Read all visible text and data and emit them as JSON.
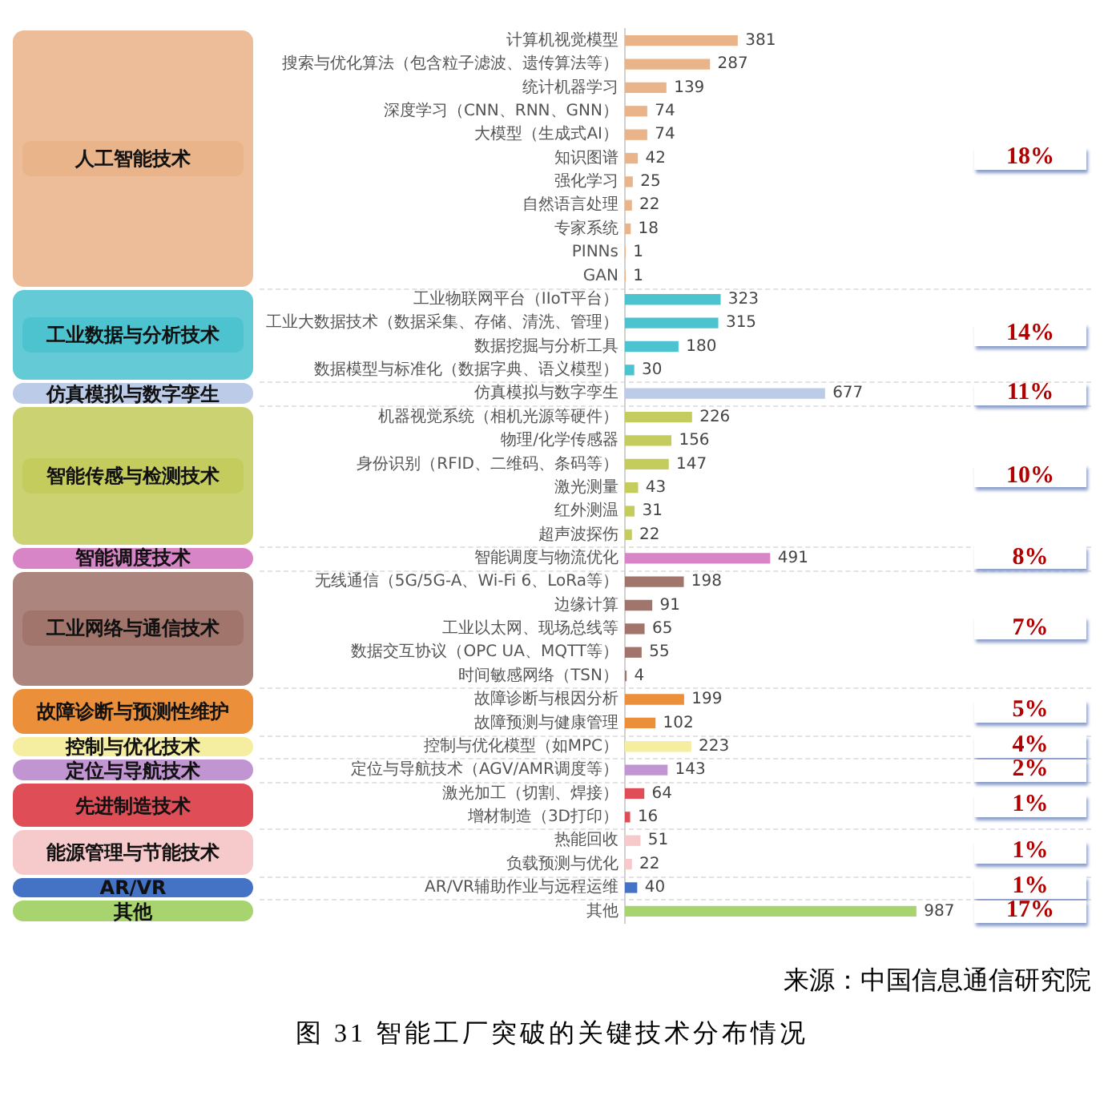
{
  "chart_data": {
    "type": "bar",
    "orientation": "horizontal",
    "title": "图 31 智能工厂突破的关键技术分布情况",
    "categories": [
      "计算机视觉模型",
      "搜索与优化算法（包含粒子滤波、遗传算法等）",
      "统计机器学习",
      "深度学习（CNN、RNN、GNN）",
      "大模型（生成式AI）",
      "知识图谱",
      "强化学习",
      "自然语言处理",
      "专家系统",
      "PINNs",
      "GAN",
      "工业物联网平台（IIoT平台）",
      "工业大数据技术（数据采集、存储、清洗、管理）",
      "数据挖掘与分析工具",
      "数据模型与标准化（数据字典、语义模型）",
      "仿真模拟与数字孪生",
      "机器视觉系统（相机光源等硬件）",
      "物理/化学传感器",
      "身份识别（RFID、二维码、条码等）",
      "激光测量",
      "红外测温",
      "超声波探伤",
      "智能调度与物流优化",
      "无线通信（5G/5G-A、Wi-Fi 6、LoRa等）",
      "边缘计算",
      "工业以太网、现场总线等",
      "数据交互协议（OPC UA、MQTT等）",
      "时间敏感网络（TSN）",
      "故障诊断与根因分析",
      "故障预测与健康管理",
      "控制与优化模型（如MPC）",
      "定位与导航技术（AGV/AMR调度等）",
      "激光加工（切割、焊接）",
      "增材制造（3D打印）",
      "热能回收",
      "负载预测与优化",
      "AR/VR辅助作业与远程运维",
      "其他"
    ],
    "series": [
      {
        "name": "人工智能技术",
        "color": "#e9b48a",
        "values": [
          381,
          287,
          139,
          74,
          74,
          42,
          25,
          22,
          18,
          1,
          1,
          null,
          null,
          null,
          null,
          null,
          null,
          null,
          null,
          null,
          null,
          null,
          null,
          null,
          null,
          null,
          null,
          null,
          null,
          null,
          null,
          null,
          null,
          null,
          null,
          null,
          null,
          null
        ]
      },
      {
        "name": "工业数据与分析技术",
        "color": "#4ec3d0",
        "values": [
          null,
          null,
          null,
          null,
          null,
          null,
          null,
          null,
          null,
          null,
          null,
          323,
          315,
          180,
          30,
          null,
          null,
          null,
          null,
          null,
          null,
          null,
          null,
          null,
          null,
          null,
          null,
          null,
          null,
          null,
          null,
          null,
          null,
          null,
          null,
          null,
          null,
          null
        ]
      },
      {
        "name": "仿真模拟与数字孪生",
        "color": "#bccbe8",
        "values": [
          null,
          null,
          null,
          null,
          null,
          null,
          null,
          null,
          null,
          null,
          null,
          null,
          null,
          null,
          null,
          677,
          null,
          null,
          null,
          null,
          null,
          null,
          null,
          null,
          null,
          null,
          null,
          null,
          null,
          null,
          null,
          null,
          null,
          null,
          null,
          null,
          null,
          null
        ]
      },
      {
        "name": "智能传感与检测技术",
        "color": "#c4cc5e",
        "values": [
          null,
          null,
          null,
          null,
          null,
          null,
          null,
          null,
          null,
          null,
          null,
          null,
          null,
          null,
          null,
          null,
          226,
          156,
          147,
          43,
          31,
          22,
          null,
          null,
          null,
          null,
          null,
          null,
          null,
          null,
          null,
          null,
          null,
          null,
          null,
          null,
          null,
          null
        ]
      },
      {
        "name": "智能调度技术",
        "color": "#d885c8",
        "values": [
          null,
          null,
          null,
          null,
          null,
          null,
          null,
          null,
          null,
          null,
          null,
          null,
          null,
          null,
          null,
          null,
          null,
          null,
          null,
          null,
          null,
          null,
          491,
          null,
          null,
          null,
          null,
          null,
          null,
          null,
          null,
          null,
          null,
          null,
          null,
          null,
          null,
          null
        ]
      },
      {
        "name": "工业网络与通信技术",
        "color": "#a1756c",
        "values": [
          null,
          null,
          null,
          null,
          null,
          null,
          null,
          null,
          null,
          null,
          null,
          null,
          null,
          null,
          null,
          null,
          null,
          null,
          null,
          null,
          null,
          null,
          null,
          198,
          91,
          65,
          55,
          4,
          null,
          null,
          null,
          null,
          null,
          null,
          null,
          null,
          null,
          null
        ]
      },
      {
        "name": "故障诊断与预测性维护",
        "color": "#ec8f3a",
        "values": [
          null,
          null,
          null,
          null,
          null,
          null,
          null,
          null,
          null,
          null,
          null,
          null,
          null,
          null,
          null,
          null,
          null,
          null,
          null,
          null,
          null,
          null,
          null,
          null,
          null,
          null,
          null,
          null,
          199,
          102,
          null,
          null,
          null,
          null,
          null,
          null,
          null,
          null
        ]
      },
      {
        "name": "控制与优化技术",
        "color": "#f5eea0",
        "values": [
          null,
          null,
          null,
          null,
          null,
          null,
          null,
          null,
          null,
          null,
          null,
          null,
          null,
          null,
          null,
          null,
          null,
          null,
          null,
          null,
          null,
          null,
          null,
          null,
          null,
          null,
          null,
          null,
          null,
          null,
          223,
          null,
          null,
          null,
          null,
          null,
          null,
          null
        ]
      },
      {
        "name": "定位与导航技术",
        "color": "#c194d2",
        "values": [
          null,
          null,
          null,
          null,
          null,
          null,
          null,
          null,
          null,
          null,
          null,
          null,
          null,
          null,
          null,
          null,
          null,
          null,
          null,
          null,
          null,
          null,
          null,
          null,
          null,
          null,
          null,
          null,
          null,
          null,
          null,
          143,
          null,
          null,
          null,
          null,
          null,
          null
        ]
      },
      {
        "name": "先进制造技术",
        "color": "#df4e56",
        "values": [
          null,
          null,
          null,
          null,
          null,
          null,
          null,
          null,
          null,
          null,
          null,
          null,
          null,
          null,
          null,
          null,
          null,
          null,
          null,
          null,
          null,
          null,
          null,
          null,
          null,
          null,
          null,
          null,
          null,
          null,
          null,
          null,
          64,
          16,
          null,
          null,
          null,
          null
        ]
      },
      {
        "name": "能源管理与节能技术",
        "color": "#f6c9cb",
        "values": [
          null,
          null,
          null,
          null,
          null,
          null,
          null,
          null,
          null,
          null,
          null,
          null,
          null,
          null,
          null,
          null,
          null,
          null,
          null,
          null,
          null,
          null,
          null,
          null,
          null,
          null,
          null,
          null,
          null,
          null,
          null,
          null,
          null,
          null,
          51,
          22,
          null,
          null
        ]
      },
      {
        "name": "AR/VR",
        "color": "#4472c4",
        "values": [
          null,
          null,
          null,
          null,
          null,
          null,
          null,
          null,
          null,
          null,
          null,
          null,
          null,
          null,
          null,
          null,
          null,
          null,
          null,
          null,
          null,
          null,
          null,
          null,
          null,
          null,
          null,
          null,
          null,
          null,
          null,
          null,
          null,
          null,
          null,
          null,
          40,
          null
        ]
      },
      {
        "name": "其他",
        "color": "#a8d46f",
        "values": [
          null,
          null,
          null,
          null,
          null,
          null,
          null,
          null,
          null,
          null,
          null,
          null,
          null,
          null,
          null,
          null,
          null,
          null,
          null,
          null,
          null,
          null,
          null,
          null,
          null,
          null,
          null,
          null,
          null,
          null,
          null,
          null,
          null,
          null,
          null,
          null,
          null,
          987
        ]
      }
    ],
    "annotations": [
      "18%",
      "14%",
      "11%",
      "10%",
      "8%",
      "7%",
      "5%",
      "4%",
      "2%",
      "1%",
      "1%",
      "1%",
      "17%",
      "来源：中国信息通信研究院"
    ],
    "data_labels": true,
    "legend": "left",
    "tick_labels": "y",
    "grid": false
  }
}
